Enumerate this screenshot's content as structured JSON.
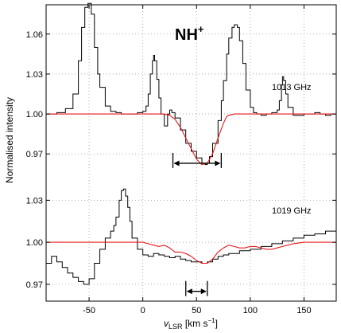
{
  "chart_data": {
    "type": "line",
    "title": "NH+",
    "xlabel": "vLSR [km s−1]",
    "ylabel": "Normalised intensity",
    "xlim": [
      -90,
      180
    ],
    "grid": true,
    "x_ticks": [
      -50,
      0,
      50,
      100,
      150
    ],
    "panels": [
      {
        "label": "1013 GHz",
        "ylim": [
          0.951,
          1.082
        ],
        "y_ticks": [
          0.97,
          1.0,
          1.03,
          1.06
        ],
        "series": [
          {
            "role": "observed",
            "color": "#000000",
            "x": [
              -90,
              -80,
              -72,
              -65,
              -60,
              -57,
              -54,
              -51,
              -48,
              -45,
              -42,
              -40,
              -35,
              -30,
              -25,
              -20,
              -15,
              -10,
              -5,
              0,
              3,
              5,
              7,
              9,
              10,
              11,
              13,
              15,
              17,
              20,
              23,
              25,
              27,
              30,
              35,
              40,
              45,
              50,
              55,
              58,
              60,
              62,
              65,
              70,
              73,
              75,
              78,
              80,
              83,
              85,
              88,
              90,
              93,
              96,
              100,
              103,
              106,
              110,
              115,
              120,
              125,
              127,
              129,
              130,
              131,
              133,
              135,
              140,
              145,
              150,
              155,
              160,
              165,
              170,
              175,
              180
            ],
            "y": [
              1.0,
              1.001,
              1.004,
              1.015,
              1.04,
              1.065,
              1.08,
              1.083,
              1.075,
              1.05,
              1.03,
              1.02,
              1.006,
              1.002,
              1.001,
              1.0,
              1.0,
              1.0,
              1.001,
              1.002,
              1.006,
              1.015,
              1.03,
              1.04,
              1.044,
              1.04,
              1.026,
              1.012,
              1.0,
              0.991,
              1.0,
              1.003,
              1.001,
              0.997,
              0.988,
              0.978,
              0.972,
              0.967,
              0.963,
              0.962,
              0.963,
              0.968,
              0.978,
              0.995,
              1.01,
              1.025,
              1.045,
              1.057,
              1.065,
              1.067,
              1.065,
              1.055,
              1.038,
              1.018,
              1.005,
              1.001,
              1.0,
              0.999,
              1.0,
              1.001,
              1.003,
              1.01,
              1.022,
              1.028,
              1.025,
              1.015,
              1.005,
              0.999,
              0.999,
              1.0,
              1.0,
              1.001,
              1.0,
              0.999,
              1.0,
              1.0
            ]
          },
          {
            "role": "model",
            "color": "#e8191c",
            "x": [
              -90,
              0,
              20,
              25,
              30,
              35,
              40,
              45,
              50,
              55,
              60,
              65,
              70,
              75,
              78,
              80,
              85,
              90,
              180
            ],
            "y": [
              1.0,
              1.0,
              1.0,
              0.999,
              0.996,
              0.99,
              0.982,
              0.974,
              0.966,
              0.962,
              0.963,
              0.97,
              0.982,
              0.993,
              0.998,
              0.999,
              1.0,
              1.0,
              1.0
            ]
          }
        ],
        "arrow": {
          "x1": 28,
          "x2": 73,
          "y": 0.963
        }
      },
      {
        "label": "1019 GHz",
        "ylim": [
          0.958,
          1.045
        ],
        "y_ticks": [
          0.97,
          1.0,
          1.03
        ],
        "series": [
          {
            "role": "observed",
            "color": "#000000",
            "x": [
              -90,
              -85,
              -80,
              -75,
              -70,
              -65,
              -60,
              -55,
              -50,
              -45,
              -40,
              -35,
              -30,
              -27,
              -25,
              -22,
              -20,
              -18,
              -16,
              -14,
              -12,
              -10,
              -5,
              0,
              5,
              10,
              15,
              20,
              25,
              30,
              35,
              40,
              45,
              50,
              55,
              60,
              65,
              70,
              75,
              80,
              90,
              100,
              110,
              120,
              130,
              140,
              150,
              160,
              170,
              180
            ],
            "y": [
              0.985,
              0.99,
              0.986,
              0.982,
              0.978,
              0.975,
              0.972,
              0.97,
              0.974,
              0.985,
              0.995,
              1.003,
              1.008,
              1.012,
              1.018,
              1.03,
              1.037,
              1.038,
              1.033,
              1.025,
              1.015,
              1.003,
              0.995,
              0.991,
              0.99,
              0.992,
              0.991,
              0.99,
              0.989,
              0.99,
              0.988,
              0.987,
              0.986,
              0.986,
              0.985,
              0.986,
              0.988,
              0.99,
              0.991,
              0.992,
              0.994,
              0.995,
              0.997,
              0.999,
              1.001,
              1.003,
              1.005,
              1.006,
              1.008,
              1.007
            ]
          },
          {
            "role": "model",
            "color": "#e8191c",
            "x": [
              -90,
              -10,
              0,
              5,
              10,
              15,
              20,
              25,
              30,
              35,
              40,
              45,
              50,
              55,
              60,
              65,
              70,
              75,
              80,
              85,
              90,
              95,
              100,
              105,
              110,
              115,
              120,
              125,
              130,
              135,
              140,
              150,
              160,
              170,
              180
            ],
            "y": [
              1.0,
              1.0,
              1.0,
              0.999,
              0.998,
              0.997,
              0.998,
              0.996,
              0.993,
              0.993,
              0.992,
              0.99,
              0.987,
              0.985,
              0.985,
              0.988,
              0.993,
              0.996,
              0.998,
              0.997,
              0.996,
              0.996,
              0.997,
              0.997,
              0.996,
              0.995,
              0.995,
              0.996,
              0.997,
              0.998,
              0.999,
              1.0,
              1.0,
              1.0,
              1.0
            ]
          }
        ],
        "arrow": {
          "x1": 40,
          "x2": 60,
          "y": 0.965
        }
      }
    ]
  },
  "labels": {
    "species_base": "NH",
    "species_sup": "+",
    "ylabel": "Normalised intensity",
    "xlabel_v": "v",
    "xlabel_sub": "LSR",
    "xlabel_unit_open": " [km s",
    "xlabel_unit_sup": "−1",
    "xlabel_unit_close": "]"
  }
}
